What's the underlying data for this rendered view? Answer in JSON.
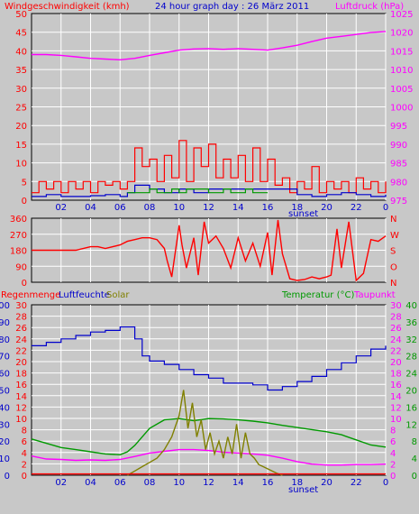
{
  "colors": {
    "bg": "#c8c8c8",
    "grid": "#ffffff",
    "red": "#ff0000",
    "blue": "#0000cc",
    "green": "#009900",
    "magenta": "#ff00ff",
    "olive": "#808000",
    "axis": "#000000"
  },
  "chart_data": [
    {
      "type": "line",
      "title": "24 hour graph day : 26 März 2011",
      "label_left": "Windgeschwindigkeit (kmh)",
      "label_right": "Luftdruck (hPa)",
      "x_ticks": [
        "02",
        "04",
        "06",
        "08",
        "10",
        "12",
        "14",
        "16",
        "18",
        "20",
        "22",
        "0"
      ],
      "sunset_label": "sunset",
      "sunset_hour": 17.2,
      "ylim_left": [
        0,
        50
      ],
      "yticks_left": [
        "0",
        "5",
        "10",
        "15",
        "20",
        "25",
        "30",
        "35",
        "40",
        "45",
        "50"
      ],
      "ylim_right": [
        975,
        1025
      ],
      "yticks_right": [
        "975",
        "980",
        "985",
        "990",
        "995",
        "1000",
        "1005",
        "1010",
        "1015",
        "1020",
        "1025"
      ],
      "series": [
        {
          "name": "Luftdruck (hPa)",
          "axis": "right",
          "color": "magenta",
          "x": [
            0,
            1,
            2,
            3,
            4,
            5,
            6,
            7,
            8,
            9,
            10,
            11,
            12,
            13,
            14,
            15,
            16,
            17,
            18,
            19,
            20,
            21,
            22,
            23,
            24
          ],
          "y": [
            1014,
            1014,
            1013.8,
            1013.4,
            1013,
            1012.8,
            1012.6,
            1013,
            1013.8,
            1014.5,
            1015.2,
            1015.5,
            1015.6,
            1015.4,
            1015.6,
            1015.4,
            1015.2,
            1015.8,
            1016.5,
            1017.5,
            1018.4,
            1018.9,
            1019.4,
            1019.9,
            1020.2
          ]
        },
        {
          "name": "Windböen",
          "axis": "left",
          "color": "red",
          "x": [
            0,
            0.5,
            1,
            1.5,
            2,
            2.5,
            3,
            3.5,
            4,
            4.5,
            5,
            5.5,
            6,
            6.5,
            7,
            7.5,
            8,
            8.5,
            9,
            9.5,
            10,
            10.5,
            11,
            11.5,
            12,
            12.5,
            13,
            13.5,
            14,
            14.5,
            15,
            15.5,
            16,
            16.5,
            17,
            17.5,
            18,
            18.5,
            19,
            19.5,
            20,
            20.5,
            21,
            21.5,
            22,
            22.5,
            23,
            23.5,
            24
          ],
          "y": [
            2,
            5,
            3,
            5,
            2,
            5,
            3,
            5,
            2,
            5,
            4,
            5,
            3,
            5,
            14,
            9,
            11,
            5,
            12,
            6,
            16,
            5,
            14,
            9,
            15,
            6,
            11,
            6,
            12,
            5,
            14,
            5,
            11,
            4,
            6,
            2,
            5,
            3,
            9,
            2,
            5,
            3,
            5,
            2,
            6,
            3,
            5,
            2,
            5
          ]
        },
        {
          "name": "Wind",
          "axis": "left",
          "color": "blue",
          "x": [
            0,
            1,
            2,
            3,
            4,
            5,
            6,
            6.5,
            7,
            8,
            9,
            10,
            11,
            12,
            13,
            14,
            15,
            16,
            17,
            18,
            19,
            20,
            21,
            22,
            23,
            24
          ],
          "y": [
            1,
            1.5,
            1,
            1,
            1.2,
            1.5,
            1,
            2,
            4,
            3,
            2,
            3,
            2,
            3,
            3,
            3,
            3,
            3,
            3,
            1.5,
            1,
            1.5,
            2,
            1.5,
            1,
            1.5
          ]
        },
        {
          "name": "Windrichtung",
          "axis": "left",
          "color": "green",
          "x": [
            6.5,
            7,
            7.5,
            8,
            8.5,
            9,
            9.5,
            10,
            10.5,
            11,
            11.5,
            12,
            12.5,
            13,
            13.5,
            14,
            14.5,
            15,
            15.5,
            16
          ],
          "y": [
            2,
            2,
            2,
            3,
            2,
            2,
            3,
            2,
            3,
            3,
            3,
            2,
            2,
            3,
            2,
            2,
            3,
            2,
            2,
            2
          ]
        }
      ]
    },
    {
      "type": "line",
      "ylim": [
        0,
        360
      ],
      "yticks_left": [
        "0",
        "90",
        "180",
        "270",
        "360"
      ],
      "yticks_right": [
        "N",
        "O",
        "S",
        "W",
        "N"
      ],
      "x_ticks": [
        "02",
        "04",
        "06",
        "08",
        "10",
        "12",
        "14",
        "16",
        "18",
        "20",
        "22",
        "0"
      ],
      "series": [
        {
          "name": "Windrichtung",
          "color": "red",
          "x": [
            0,
            1,
            2,
            3,
            4,
            4.5,
            5,
            6,
            6.5,
            7,
            7.5,
            8,
            8.5,
            9,
            9.2,
            9.5,
            10,
            10.2,
            10.5,
            11,
            11.3,
            11.7,
            12,
            12.5,
            13,
            13.5,
            14,
            14.5,
            15,
            15.5,
            16,
            16.3,
            16.7,
            17,
            17.5,
            18,
            18.5,
            19,
            19.5,
            20,
            20.3,
            20.7,
            21,
            21.5,
            22,
            22.5,
            23,
            23.5,
            24
          ],
          "y": [
            180,
            180,
            180,
            180,
            200,
            200,
            190,
            210,
            230,
            240,
            250,
            250,
            240,
            190,
            120,
            30,
            320,
            210,
            80,
            250,
            40,
            340,
            220,
            260,
            190,
            80,
            250,
            120,
            220,
            90,
            280,
            40,
            350,
            160,
            20,
            10,
            15,
            30,
            20,
            30,
            40,
            300,
            80,
            340,
            10,
            50,
            240,
            230,
            260
          ]
        }
      ]
    },
    {
      "type": "line",
      "label_left_1": "Regenmenge",
      "label_left_2": "Luftfeuchte",
      "label_left_3": "Solar",
      "label_right_1": "Temperatur (°C)",
      "label_right_2": "Taupunkt",
      "x_ticks": [
        "02",
        "04",
        "06",
        "08",
        "10",
        "12",
        "14",
        "16",
        "18",
        "20",
        "22",
        "0"
      ],
      "sunset_label": "sunset",
      "yticks_rain": [
        "0",
        "2",
        "4",
        "6",
        "8",
        "10",
        "12",
        "14",
        "16",
        "18",
        "20",
        "22",
        "24",
        "26",
        "28",
        "30"
      ],
      "yticks_humidity": [
        "0",
        "10",
        "20",
        "30",
        "40",
        "50",
        "60",
        "70",
        "80",
        "90",
        "100"
      ],
      "yticks_temp_outer": [
        "0",
        "4",
        "8",
        "12",
        "16",
        "20",
        "24",
        "28",
        "32",
        "36",
        "40"
      ],
      "yticks_temp_inner": [
        "0",
        "2",
        "4",
        "6",
        "8",
        "10",
        "12",
        "14",
        "16",
        "18",
        "20",
        "22",
        "24",
        "26",
        "28",
        "30"
      ],
      "ylim_humidity": [
        0,
        100
      ],
      "ylim_temp": [
        0,
        40
      ],
      "series": [
        {
          "name": "Luftfeuchte",
          "axis": "humidity",
          "color": "blue",
          "x": [
            0,
            1,
            2,
            3,
            4,
            5,
            6,
            6.5,
            7,
            7.5,
            8,
            9,
            10,
            11,
            12,
            13,
            14,
            15,
            16,
            17,
            18,
            19,
            20,
            21,
            22,
            23,
            24
          ],
          "y": [
            76,
            78,
            80,
            82,
            84,
            85,
            87,
            87,
            80,
            70,
            67,
            65,
            62,
            59,
            57,
            54,
            54,
            53,
            50,
            52,
            55,
            58,
            62,
            66,
            70,
            74,
            76
          ]
        },
        {
          "name": "Temperatur (°C)",
          "axis": "temp",
          "color": "green",
          "x": [
            0,
            1,
            2,
            3,
            4,
            5,
            6,
            6.5,
            7,
            8,
            9,
            10,
            11,
            12,
            13,
            14,
            15,
            16,
            17,
            18,
            19,
            20,
            21,
            22,
            23,
            24
          ],
          "y": [
            8.5,
            7.5,
            6.5,
            6,
            5.5,
            5,
            4.8,
            5.5,
            7,
            11,
            13,
            13.3,
            12.8,
            13.3,
            13.2,
            13,
            12.7,
            12.3,
            11.7,
            11.2,
            10.7,
            10.2,
            9.5,
            8.3,
            7.1,
            6.6
          ]
        },
        {
          "name": "Taupunkt",
          "axis": "temp",
          "color": "magenta",
          "x": [
            0,
            1,
            2,
            3,
            4,
            5,
            6,
            7,
            8,
            9,
            10,
            11,
            12,
            13,
            14,
            15,
            16,
            17,
            18,
            19,
            20,
            21,
            22,
            23,
            24
          ],
          "y": [
            4.5,
            3.8,
            3.7,
            3.5,
            3.6,
            3.5,
            3.7,
            4.4,
            5.2,
            5.6,
            6,
            6,
            5.8,
            5.4,
            5.2,
            5,
            4.7,
            4,
            3.2,
            2.6,
            2.4,
            2.4,
            2.5,
            2.5,
            2.6
          ]
        },
        {
          "name": "Solar",
          "axis": "temp",
          "color": "olive",
          "x": [
            6.5,
            7,
            7.5,
            8,
            8.5,
            9,
            9.5,
            10,
            10.3,
            10.6,
            10.9,
            11.2,
            11.5,
            11.8,
            12.1,
            12.4,
            12.7,
            13,
            13.3,
            13.6,
            13.9,
            14.2,
            14.5,
            14.8,
            15.1,
            15.4,
            15.7,
            16,
            16.3,
            16.6,
            17
          ],
          "y": [
            0,
            1,
            2,
            3,
            4,
            6,
            9,
            14,
            20,
            11,
            17,
            9,
            13,
            6,
            10,
            5,
            8,
            4,
            9,
            5,
            12,
            4,
            10,
            5,
            4,
            2.5,
            2,
            1.5,
            1,
            0.5,
            0
          ]
        },
        {
          "name": "Regenmenge",
          "axis": "temp",
          "color": "red",
          "x": [
            0,
            24
          ],
          "y": [
            0.3,
            0.3
          ]
        }
      ]
    }
  ]
}
